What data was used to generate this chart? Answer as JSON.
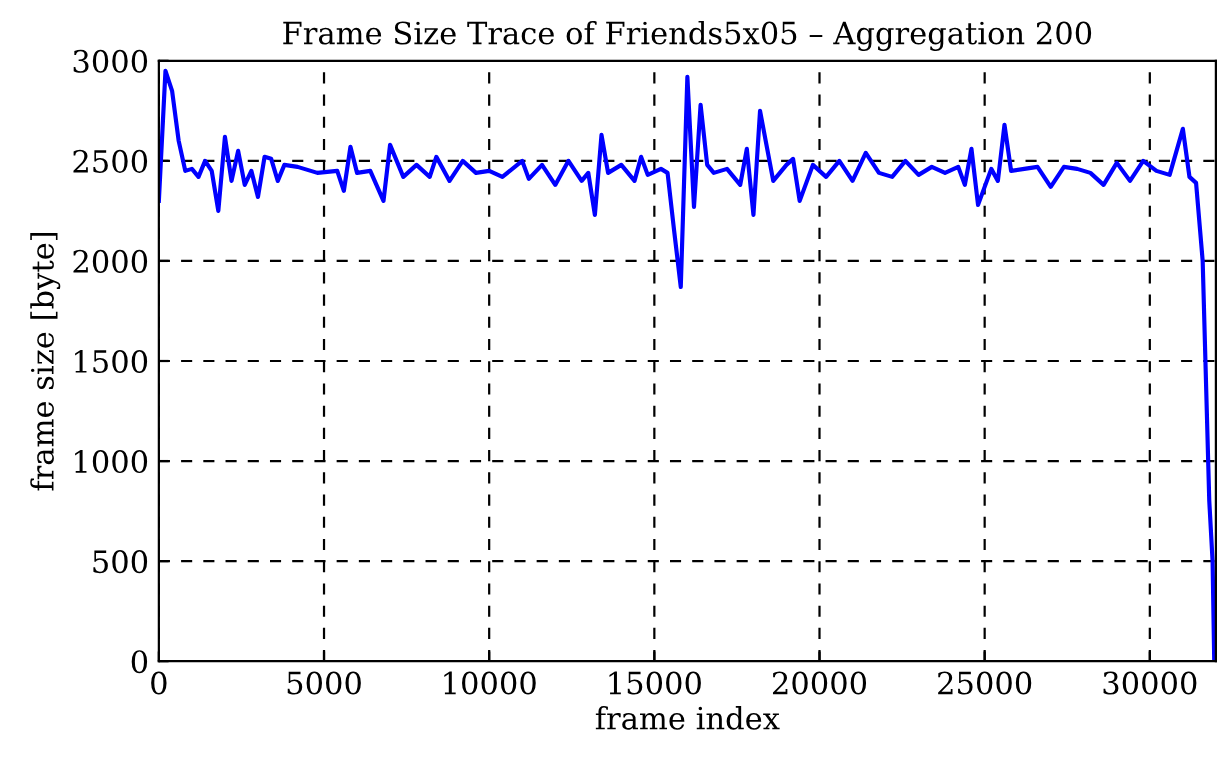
{
  "chart_data": {
    "type": "line",
    "title": "Frame Size Trace of Friends5x05 – Aggregation 200",
    "xlabel": "frame index",
    "ylabel": "frame size [byte]",
    "xlim": [
      0,
      32000
    ],
    "ylim": [
      0,
      3000
    ],
    "xticks": [
      0,
      5000,
      10000,
      15000,
      20000,
      25000,
      30000
    ],
    "yticks": [
      0,
      500,
      1000,
      1500,
      2000,
      2500,
      3000
    ],
    "grid": true,
    "line_style": "solid",
    "marker": "none",
    "series": [
      {
        "color": "#0000ff",
        "x": [
          0,
          200,
          400,
          600,
          800,
          1000,
          1200,
          1400,
          1600,
          1800,
          2000,
          2200,
          2400,
          2600,
          2800,
          3000,
          3200,
          3400,
          3600,
          3800,
          4200,
          4800,
          5400,
          5600,
          5800,
          6000,
          6400,
          6800,
          7000,
          7400,
          7800,
          8200,
          8400,
          8800,
          9200,
          9600,
          10000,
          10400,
          11000,
          11200,
          11600,
          12000,
          12400,
          12800,
          13000,
          13200,
          13400,
          13600,
          14000,
          14400,
          14600,
          14800,
          15200,
          15400,
          15600,
          15800,
          16000,
          16200,
          16400,
          16600,
          16800,
          17200,
          17600,
          17800,
          18000,
          18200,
          18600,
          19000,
          19200,
          19400,
          19800,
          20200,
          20600,
          21000,
          21400,
          21800,
          22200,
          22600,
          23000,
          23400,
          23800,
          24200,
          24400,
          24600,
          24800,
          25200,
          25400,
          25600,
          25800,
          26200,
          26600,
          27000,
          27400,
          27800,
          28200,
          28600,
          29000,
          29400,
          29800,
          30200,
          30600,
          31000,
          31200,
          31400,
          31600,
          31800,
          31900,
          31950
        ],
        "values": [
          2300,
          2950,
          2850,
          2600,
          2450,
          2460,
          2420,
          2500,
          2450,
          2250,
          2620,
          2400,
          2550,
          2380,
          2450,
          2320,
          2520,
          2510,
          2400,
          2480,
          2470,
          2440,
          2450,
          2350,
          2570,
          2440,
          2450,
          2300,
          2580,
          2420,
          2480,
          2420,
          2520,
          2400,
          2500,
          2440,
          2450,
          2420,
          2500,
          2410,
          2480,
          2380,
          2500,
          2400,
          2440,
          2230,
          2630,
          2440,
          2480,
          2400,
          2520,
          2430,
          2460,
          2440,
          2150,
          1870,
          2920,
          2270,
          2780,
          2480,
          2440,
          2460,
          2380,
          2560,
          2230,
          2750,
          2400,
          2480,
          2510,
          2300,
          2480,
          2420,
          2500,
          2400,
          2540,
          2440,
          2420,
          2500,
          2430,
          2470,
          2440,
          2470,
          2380,
          2560,
          2280,
          2460,
          2400,
          2680,
          2450,
          2460,
          2470,
          2370,
          2470,
          2460,
          2440,
          2380,
          2490,
          2400,
          2500,
          2450,
          2430,
          2660,
          2420,
          2390,
          2000,
          800,
          500,
          0
        ]
      }
    ]
  }
}
